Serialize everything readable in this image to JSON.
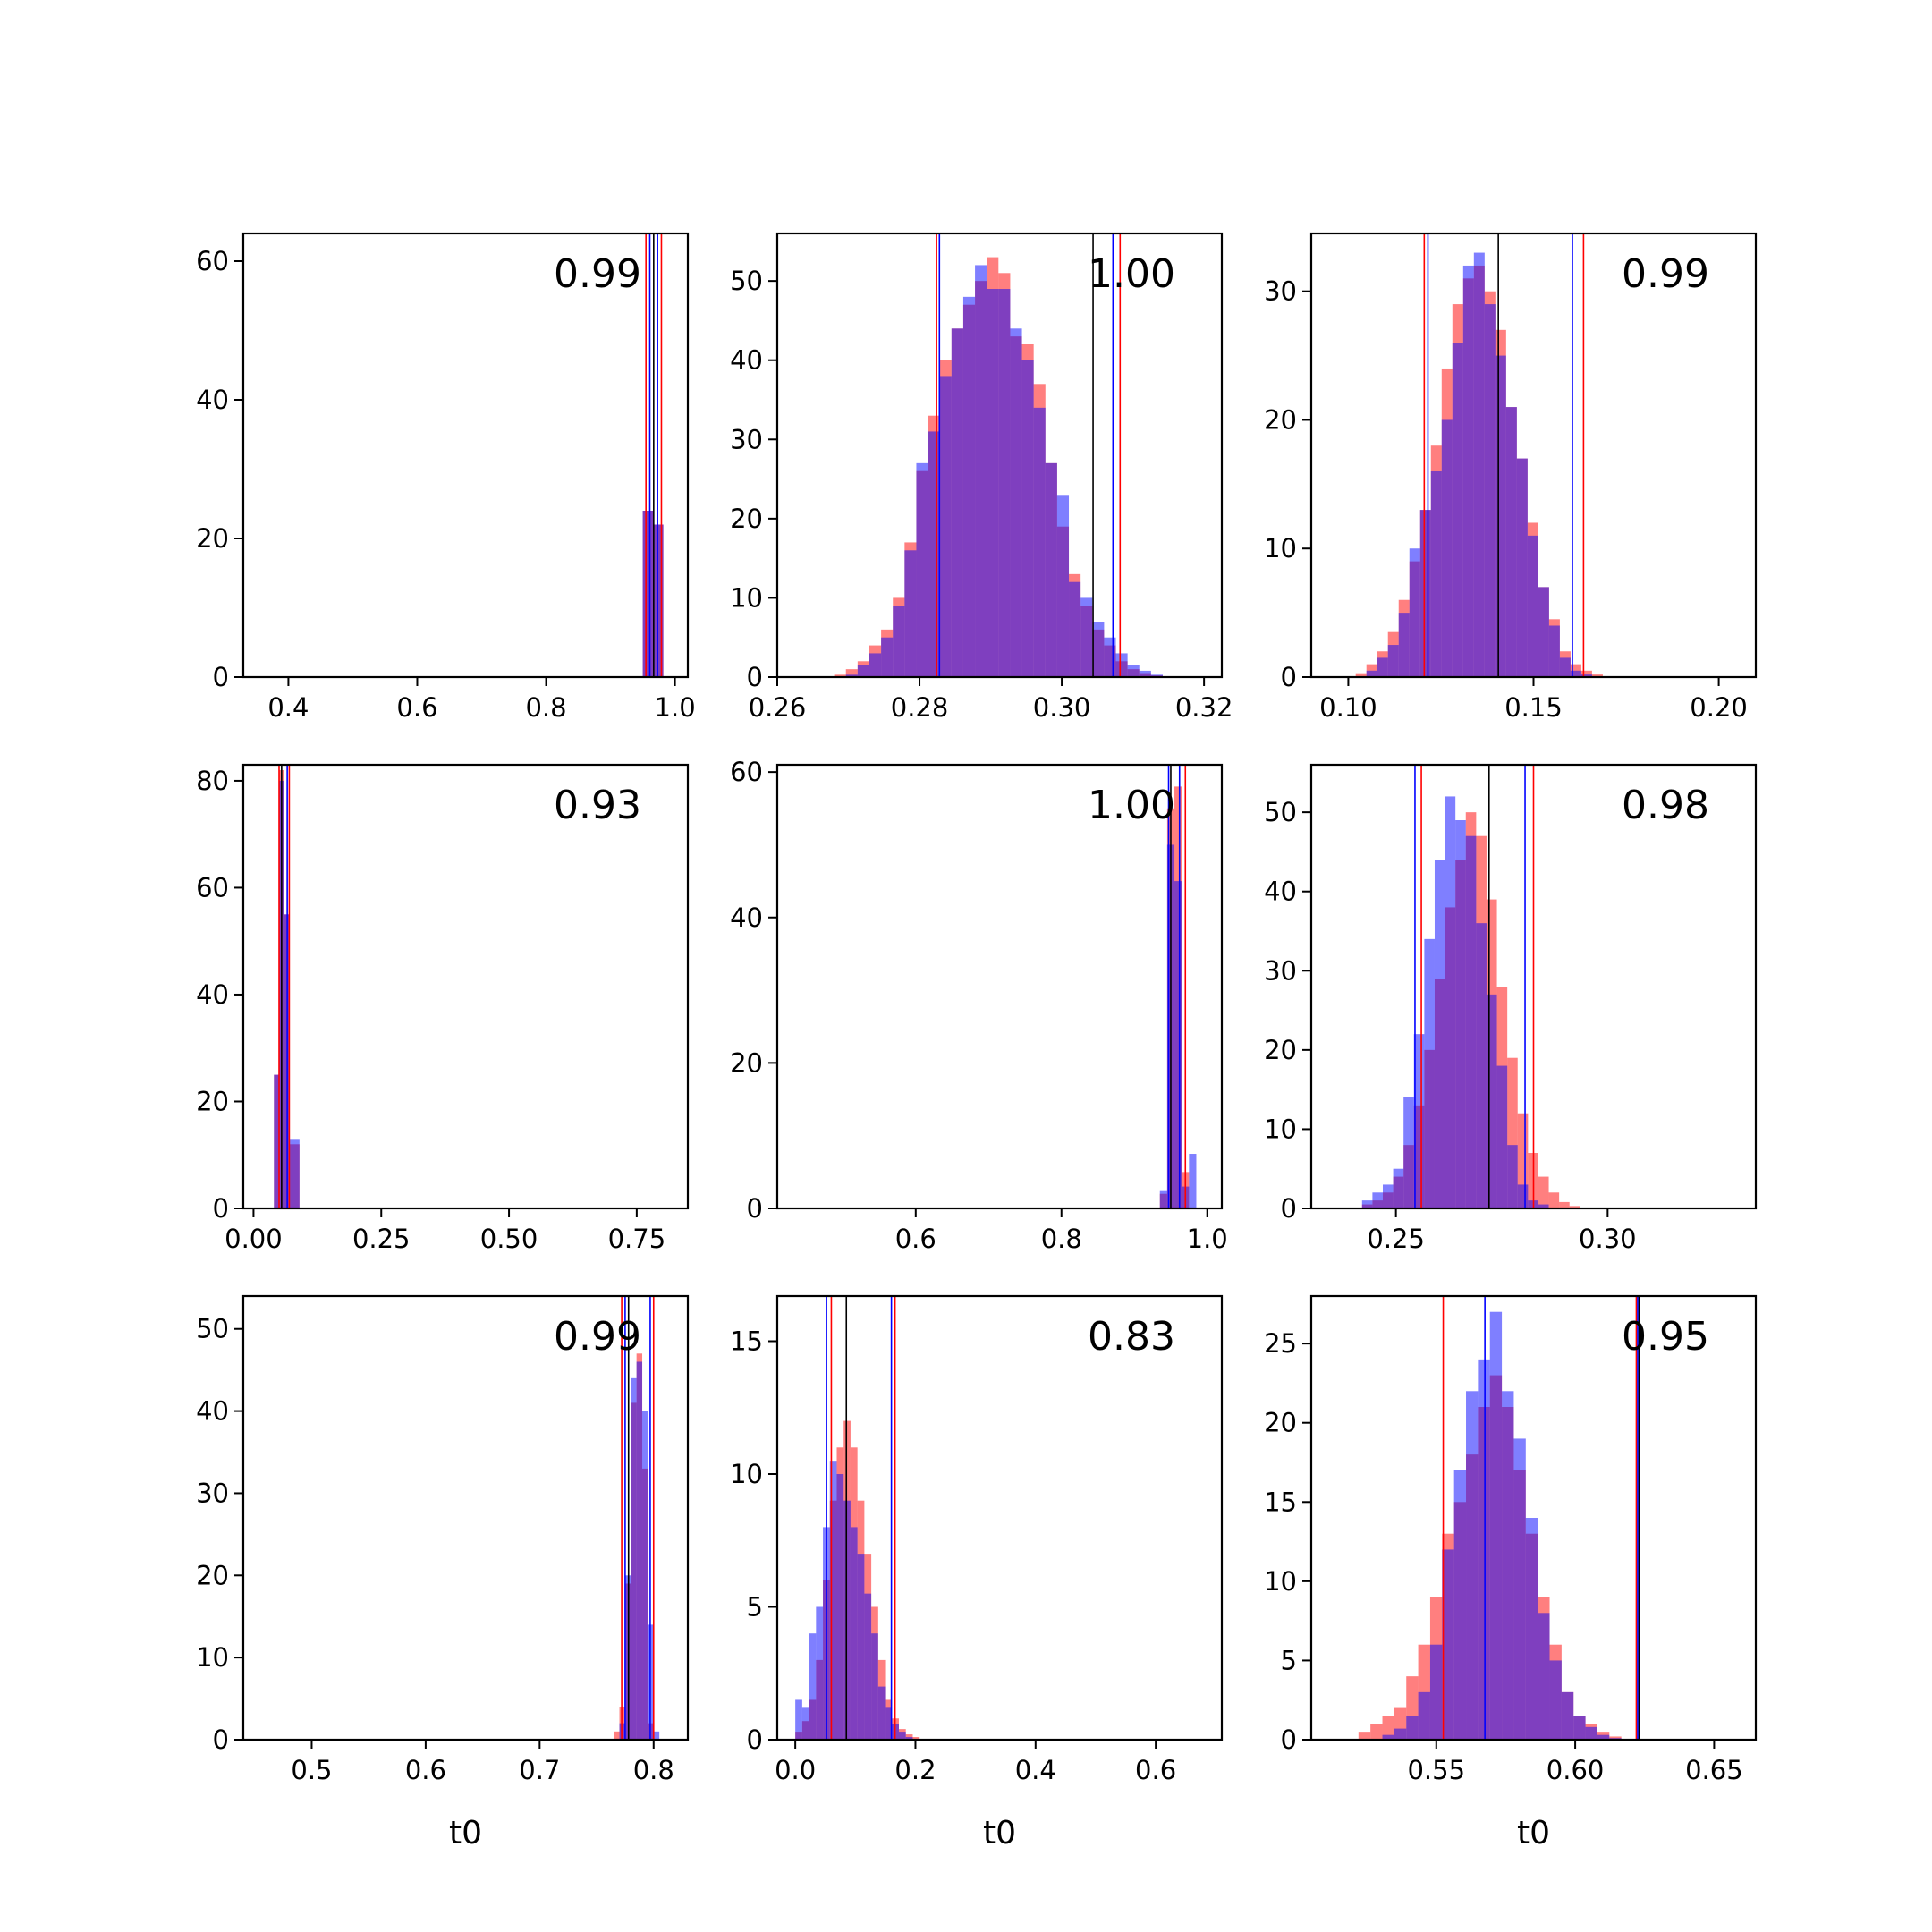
{
  "figure": {
    "xlabel": "t0"
  },
  "colors": {
    "red": "#ff0000",
    "blue": "#0000ff",
    "black": "#000000"
  },
  "chart_data": [
    {
      "type": "histogram",
      "annotation": "0.99",
      "xlim": [
        0.33,
        1.02
      ],
      "ylim": [
        0,
        64
      ],
      "xticks": [
        0.4,
        0.6,
        0.8,
        1.0
      ],
      "xtick_labels": [
        "0.4",
        "0.6",
        "0.8",
        "1.0"
      ],
      "yticks": [
        0,
        20,
        40,
        60
      ],
      "ytick_labels": [
        "0",
        "20",
        "40",
        "60"
      ],
      "xlabel": "",
      "bins": [
        {
          "x0": 0.95,
          "x1": 0.966,
          "red": 24,
          "blue": 24
        },
        {
          "x0": 0.966,
          "x1": 0.982,
          "red": 22,
          "blue": 22
        }
      ],
      "vlines": [
        {
          "x": 0.955,
          "color": "red"
        },
        {
          "x": 0.961,
          "color": "blue"
        },
        {
          "x": 0.967,
          "color": "black"
        },
        {
          "x": 0.973,
          "color": "blue"
        },
        {
          "x": 0.979,
          "color": "red"
        }
      ]
    },
    {
      "type": "histogram",
      "annotation": "1.00",
      "xlim": [
        0.26,
        0.3225
      ],
      "ylim": [
        0,
        56
      ],
      "xticks": [
        0.26,
        0.28,
        0.3,
        0.32
      ],
      "xtick_labels": [
        "0.26",
        "0.28",
        "0.30",
        "0.32"
      ],
      "yticks": [
        0,
        10,
        20,
        30,
        40,
        50
      ],
      "ytick_labels": [
        "0",
        "10",
        "20",
        "30",
        "40",
        "50"
      ],
      "xlabel": "",
      "bin_start": 0.268,
      "bin_width": 0.00165,
      "red": [
        0.3,
        1,
        2,
        4,
        6,
        10,
        17,
        26,
        33,
        40,
        44,
        47,
        50,
        53,
        51,
        43,
        42,
        37,
        27,
        19,
        13,
        9,
        6,
        4,
        2,
        1,
        0.5,
        0.2,
        0.1
      ],
      "blue": [
        0,
        0.3,
        1.5,
        3,
        5,
        9,
        16,
        27,
        31,
        38,
        44,
        48,
        52,
        49,
        49,
        44,
        40,
        34,
        27,
        23,
        12,
        10,
        7,
        5,
        3,
        1.5,
        0.8,
        0.3,
        0
      ],
      "vlines": [
        {
          "x": 0.2824,
          "color": "red"
        },
        {
          "x": 0.2828,
          "color": "blue"
        },
        {
          "x": 0.3044,
          "color": "black"
        },
        {
          "x": 0.3072,
          "color": "blue"
        },
        {
          "x": 0.3082,
          "color": "red"
        }
      ]
    },
    {
      "type": "histogram",
      "annotation": "0.99",
      "xlim": [
        0.09,
        0.21
      ],
      "ylim": [
        0,
        34.5
      ],
      "xticks": [
        0.1,
        0.15,
        0.2
      ],
      "xtick_labels": [
        "0.10",
        "0.15",
        "0.20"
      ],
      "yticks": [
        0,
        10,
        20,
        30
      ],
      "ytick_labels": [
        "0",
        "10",
        "20",
        "30"
      ],
      "xlabel": "",
      "bin_start": 0.102,
      "bin_width": 0.0029,
      "red": [
        0.3,
        1,
        2,
        3.5,
        6,
        9,
        13,
        18,
        24,
        29,
        31,
        32,
        30,
        27,
        21,
        17,
        12,
        7,
        4.5,
        2,
        1,
        0.5,
        0.2
      ],
      "blue": [
        0,
        0.5,
        1.5,
        2.5,
        5,
        10,
        13,
        16,
        20,
        26,
        32,
        33,
        29,
        25,
        21,
        17,
        11,
        7,
        4,
        1.5,
        0.5,
        0.2,
        0
      ],
      "vlines": [
        {
          "x": 0.1205,
          "color": "red"
        },
        {
          "x": 0.1215,
          "color": "blue"
        },
        {
          "x": 0.1405,
          "color": "black"
        },
        {
          "x": 0.1605,
          "color": "blue"
        },
        {
          "x": 0.1635,
          "color": "red"
        }
      ]
    },
    {
      "type": "histogram",
      "annotation": "0.93",
      "xlim": [
        -0.02,
        0.85
      ],
      "ylim": [
        0,
        83
      ],
      "xticks": [
        0.0,
        0.25,
        0.5,
        0.75
      ],
      "xtick_labels": [
        "0.00",
        "0.25",
        "0.50",
        "0.75"
      ],
      "yticks": [
        0,
        20,
        40,
        60,
        80
      ],
      "ytick_labels": [
        "0",
        "20",
        "40",
        "60",
        "80"
      ],
      "xlabel": "",
      "bins": [
        {
          "x0": 0.04,
          "x1": 0.05,
          "red": 25,
          "blue": 25
        },
        {
          "x0": 0.05,
          "x1": 0.06,
          "red": 82,
          "blue": 80
        },
        {
          "x0": 0.06,
          "x1": 0.07,
          "red": 55,
          "blue": 55
        },
        {
          "x0": 0.07,
          "x1": 0.09,
          "red": 12,
          "blue": 13
        }
      ],
      "vlines": [
        {
          "x": 0.05,
          "color": "red"
        },
        {
          "x": 0.055,
          "color": "black"
        },
        {
          "x": 0.066,
          "color": "blue"
        },
        {
          "x": 0.07,
          "color": "red"
        }
      ]
    },
    {
      "type": "histogram",
      "annotation": "1.00",
      "xlim": [
        0.41,
        1.02
      ],
      "ylim": [
        0,
        61
      ],
      "xticks": [
        0.6,
        0.8,
        1.0
      ],
      "xtick_labels": [
        "0.6",
        "0.8",
        "1.0"
      ],
      "yticks": [
        0,
        20,
        40,
        60
      ],
      "ytick_labels": [
        "0",
        "20",
        "40",
        "60"
      ],
      "xlabel": "",
      "bins": [
        {
          "x0": 0.935,
          "x1": 0.945,
          "red": 2,
          "blue": 2.5
        },
        {
          "x0": 0.945,
          "x1": 0.955,
          "red": 55,
          "blue": 50
        },
        {
          "x0": 0.955,
          "x1": 0.965,
          "red": 58,
          "blue": 45
        },
        {
          "x0": 0.965,
          "x1": 0.975,
          "red": 5,
          "blue": 3
        },
        {
          "x0": 0.975,
          "x1": 0.985,
          "red": 0,
          "blue": 7.5
        }
      ],
      "vlines": [
        {
          "x": 0.947,
          "color": "blue"
        },
        {
          "x": 0.95,
          "color": "black"
        },
        {
          "x": 0.962,
          "color": "blue"
        },
        {
          "x": 0.97,
          "color": "red"
        }
      ]
    },
    {
      "type": "histogram",
      "annotation": "0.98",
      "xlim": [
        0.23,
        0.335
      ],
      "ylim": [
        0,
        56
      ],
      "xticks": [
        0.25,
        0.3
      ],
      "xtick_labels": [
        "0.25",
        "0.30"
      ],
      "yticks": [
        0,
        10,
        20,
        30,
        40,
        50
      ],
      "ytick_labels": [
        "0",
        "10",
        "20",
        "30",
        "40",
        "50"
      ],
      "xlabel": "",
      "bin_start": 0.242,
      "bin_width": 0.00245,
      "red": [
        0.5,
        1,
        2,
        4,
        8,
        13,
        20,
        29,
        38,
        44,
        50,
        47,
        39,
        28,
        19,
        12,
        7,
        4,
        2,
        0.8,
        0.3
      ],
      "blue": [
        1,
        2,
        3,
        5,
        14,
        22,
        34,
        44,
        52,
        49,
        47,
        36,
        27,
        18,
        8,
        3,
        1,
        0.5,
        0,
        0,
        0
      ],
      "vlines": [
        {
          "x": 0.2545,
          "color": "blue"
        },
        {
          "x": 0.256,
          "color": "red"
        },
        {
          "x": 0.272,
          "color": "black"
        },
        {
          "x": 0.2805,
          "color": "blue"
        },
        {
          "x": 0.2825,
          "color": "red"
        }
      ]
    },
    {
      "type": "histogram",
      "annotation": "0.99",
      "xlim": [
        0.44,
        0.83
      ],
      "ylim": [
        0,
        54
      ],
      "xticks": [
        0.5,
        0.6,
        0.7,
        0.8
      ],
      "xtick_labels": [
        "0.5",
        "0.6",
        "0.7",
        "0.8"
      ],
      "yticks": [
        0,
        10,
        20,
        30,
        40,
        50
      ],
      "ytick_labels": [
        "0",
        "10",
        "20",
        "30",
        "40",
        "50"
      ],
      "xlabel": "t0",
      "bin_start": 0.765,
      "bin_width": 0.005,
      "red": [
        1,
        4,
        19,
        41,
        47,
        33,
        2,
        0
      ],
      "blue": [
        0,
        2,
        20,
        44,
        46,
        40,
        14,
        1
      ],
      "vlines": [
        {
          "x": 0.772,
          "color": "red"
        },
        {
          "x": 0.775,
          "color": "blue"
        },
        {
          "x": 0.778,
          "color": "black"
        },
        {
          "x": 0.797,
          "color": "blue"
        },
        {
          "x": 0.8,
          "color": "red"
        }
      ]
    },
    {
      "type": "histogram",
      "annotation": "0.83",
      "xlim": [
        -0.03,
        0.71
      ],
      "ylim": [
        0,
        16.7
      ],
      "xticks": [
        0.0,
        0.2,
        0.4,
        0.6
      ],
      "xtick_labels": [
        "0.0",
        "0.2",
        "0.4",
        "0.6"
      ],
      "yticks": [
        0,
        5,
        10,
        15
      ],
      "ytick_labels": [
        "0",
        "5",
        "10",
        "15"
      ],
      "xlabel": "t0",
      "bin_start": 0.0,
      "bin_width": 0.0115,
      "red": [
        0.3,
        0.7,
        1.5,
        3,
        6,
        9,
        11,
        12,
        11,
        9,
        7,
        5,
        3,
        1.5,
        0.8,
        0.4,
        0.2,
        0.1
      ],
      "blue": [
        1.5,
        1.2,
        4,
        5,
        8,
        10.5,
        10,
        9,
        8,
        7,
        5.5,
        4,
        2,
        1.2,
        0.6,
        0.3,
        0.1,
        0
      ],
      "vlines": [
        {
          "x": 0.052,
          "color": "blue"
        },
        {
          "x": 0.06,
          "color": "red"
        },
        {
          "x": 0.085,
          "color": "black"
        },
        {
          "x": 0.16,
          "color": "blue"
        },
        {
          "x": 0.166,
          "color": "red"
        }
      ]
    },
    {
      "type": "histogram",
      "annotation": "0.95",
      "xlim": [
        0.505,
        0.665
      ],
      "ylim": [
        0,
        28
      ],
      "xticks": [
        0.55,
        0.6,
        0.65
      ],
      "xtick_labels": [
        "0.55",
        "0.60",
        "0.65"
      ],
      "yticks": [
        0,
        5,
        10,
        15,
        20,
        25
      ],
      "ytick_labels": [
        "0",
        "5",
        "10",
        "15",
        "20",
        "25"
      ],
      "xlabel": "t0",
      "bin_start": 0.522,
      "bin_width": 0.0043,
      "red": [
        0.5,
        1,
        1.5,
        2,
        4,
        6,
        9,
        13,
        15,
        18,
        21,
        23,
        21,
        17,
        13,
        9,
        6,
        3,
        1.5,
        1,
        0.5,
        0.2
      ],
      "blue": [
        0,
        0,
        0.3,
        0.7,
        1.5,
        3,
        6,
        12,
        17,
        22,
        24,
        27,
        22,
        19,
        14,
        8,
        5,
        3,
        1.5,
        0.8,
        0.3,
        0.1
      ],
      "vlines": [
        {
          "x": 0.5525,
          "color": "red"
        },
        {
          "x": 0.5675,
          "color": "blue"
        },
        {
          "x": 0.622,
          "color": "red"
        },
        {
          "x": 0.6225,
          "color": "blue"
        },
        {
          "x": 0.623,
          "color": "black"
        }
      ]
    }
  ]
}
